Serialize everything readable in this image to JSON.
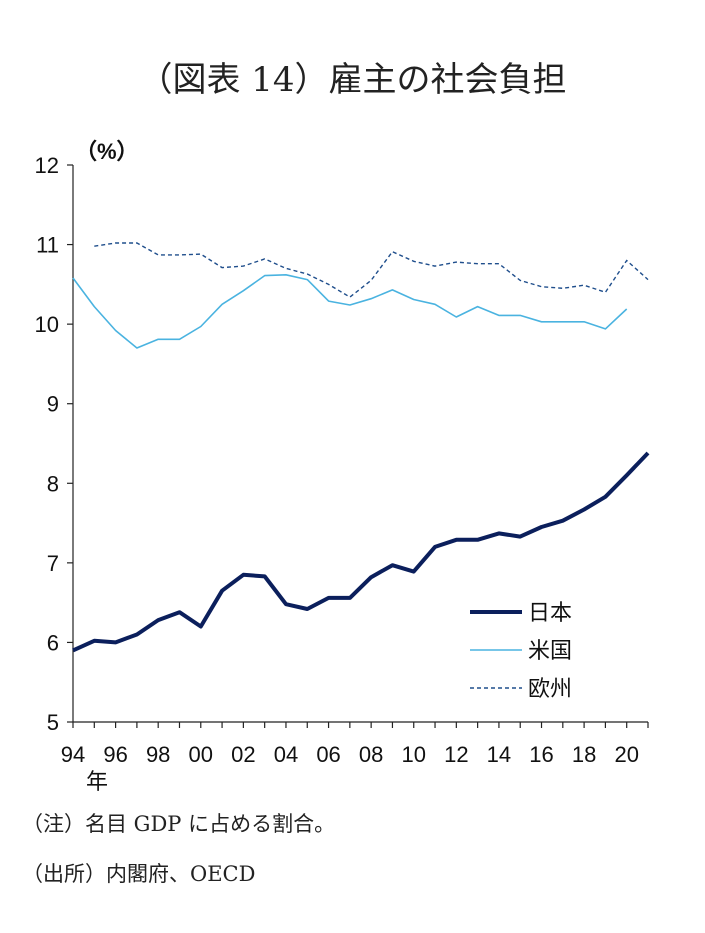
{
  "title": "（図表 14）雇主の社会負担",
  "chart_data": {
    "type": "line",
    "title": "（図表 14）雇主の社会負担",
    "ylabel": "（%）",
    "xlabel": "年",
    "ylim": [
      5,
      12
    ],
    "yticks": [
      5,
      6,
      7,
      8,
      9,
      10,
      11,
      12
    ],
    "x": [
      1994,
      1995,
      1996,
      1997,
      1998,
      1999,
      2000,
      2001,
      2002,
      2003,
      2004,
      2005,
      2006,
      2007,
      2008,
      2009,
      2010,
      2011,
      2012,
      2013,
      2014,
      2015,
      2016,
      2017,
      2018,
      2019,
      2020,
      2021
    ],
    "xtick_labels": [
      "94",
      "96",
      "98",
      "00",
      "02",
      "04",
      "06",
      "08",
      "10",
      "12",
      "14",
      "16",
      "18",
      "20"
    ],
    "xtick_years": [
      1994,
      1996,
      1998,
      2000,
      2002,
      2004,
      2006,
      2008,
      2010,
      2012,
      2014,
      2016,
      2018,
      2020
    ],
    "legend_position": "bottom-right",
    "series": [
      {
        "name": "日本",
        "style": "thick",
        "color": "#0b1f5c",
        "values": [
          5.9,
          6.02,
          6.0,
          6.1,
          6.28,
          6.38,
          6.2,
          6.65,
          6.85,
          6.83,
          6.48,
          6.42,
          6.56,
          6.56,
          6.82,
          6.97,
          6.89,
          7.2,
          7.29,
          7.29,
          7.37,
          7.33,
          7.45,
          7.53,
          7.67,
          7.83,
          8.1,
          8.38
        ]
      },
      {
        "name": "米国",
        "style": "thin",
        "color": "#4ab3e0",
        "values": [
          10.58,
          10.22,
          9.92,
          9.7,
          9.81,
          9.81,
          9.97,
          10.25,
          10.42,
          10.61,
          10.62,
          10.56,
          10.29,
          10.24,
          10.32,
          10.43,
          10.31,
          10.25,
          10.09,
          10.22,
          10.11,
          10.11,
          10.03,
          10.03,
          10.03,
          9.94,
          10.19,
          null
        ]
      },
      {
        "name": "欧州",
        "style": "dashed",
        "color": "#1f4e8c",
        "values": [
          null,
          10.98,
          11.02,
          11.02,
          10.87,
          10.87,
          10.88,
          10.71,
          10.73,
          10.82,
          10.7,
          10.63,
          10.5,
          10.34,
          10.55,
          10.91,
          10.79,
          10.73,
          10.78,
          10.76,
          10.76,
          10.55,
          10.47,
          10.45,
          10.49,
          10.4,
          10.8,
          10.56
        ]
      }
    ]
  },
  "notes": {
    "note1": "（注）名目 GDP に占める割合。",
    "note2": "（出所）内閣府、OECD"
  }
}
